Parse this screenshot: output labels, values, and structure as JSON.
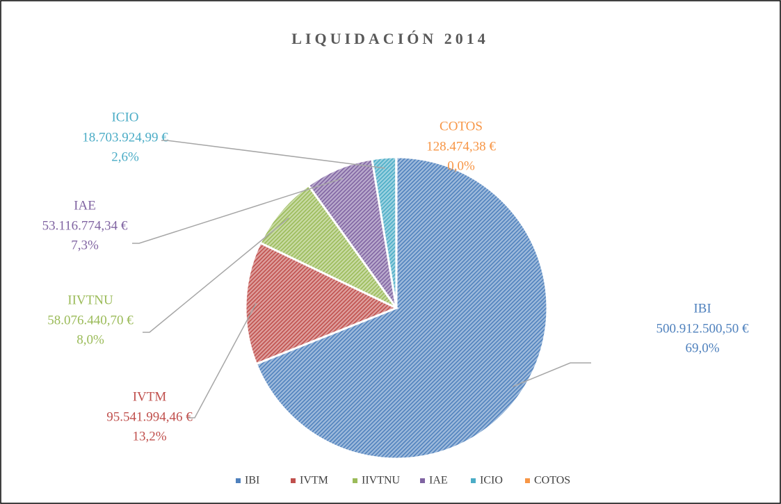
{
  "chart_data": {
    "type": "pie",
    "title": "LIQUIDACIÓN 2014",
    "categories": [
      "IBI",
      "IVTM",
      "IIVTNU",
      "IAE",
      "ICIO",
      "COTOS"
    ],
    "values": [
      500912500.5,
      95541994.46,
      58076440.7,
      53116774.34,
      18703924.99,
      128474.38
    ],
    "value_labels": [
      "500.912.500,50 €",
      "95.541.994,46 €",
      "58.076.440,70 €",
      "53.116.774,34 €",
      "18.703.924,99 €",
      "128.474,38 €"
    ],
    "percent_labels": [
      "69,0%",
      "13,2%",
      "8,0%",
      "7,3%",
      "2,6%",
      "0,0%"
    ],
    "colors": [
      "#4f81bd",
      "#c0504d",
      "#9bbb59",
      "#8064a2",
      "#4bacc6",
      "#f79646"
    ],
    "legend": "bottom"
  }
}
